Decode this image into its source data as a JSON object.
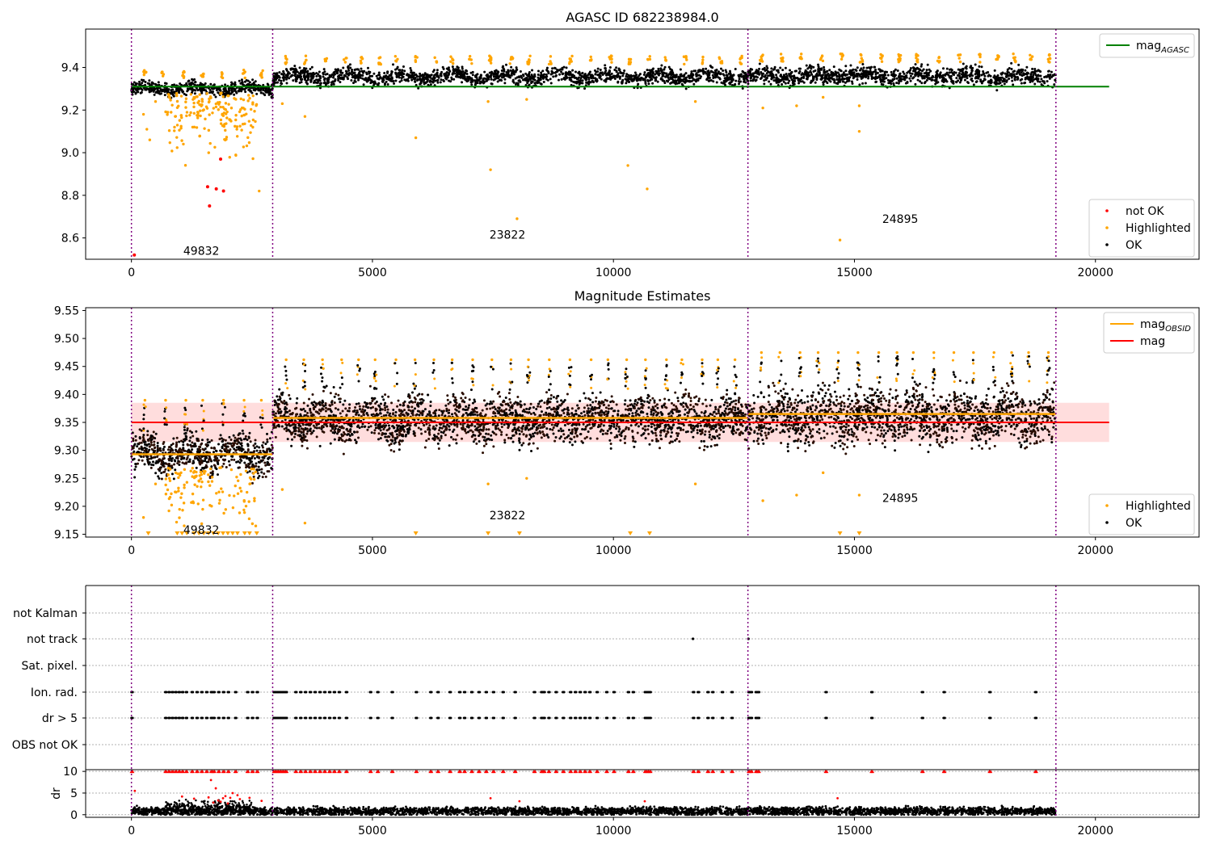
{
  "chart_data": [
    {
      "type": "scatter",
      "title": "AGASC ID 682238984.0",
      "xlim": [
        -950,
        22150
      ],
      "ylim": [
        8.5,
        9.58
      ],
      "xticks": [
        0,
        5000,
        10000,
        15000,
        20000
      ],
      "yticks": [
        8.6,
        8.8,
        9.0,
        9.2,
        9.4
      ],
      "grid": false,
      "legend_upper": {
        "position": "upper-right",
        "entries": [
          {
            "label": "mag",
            "sub": "AGASC",
            "color": "#008000"
          }
        ]
      },
      "legend_lower": {
        "position": "lower-right",
        "entries": [
          {
            "label": "not OK",
            "color": "#ff0000"
          },
          {
            "label": "Highlighted",
            "color": "#ffa500"
          },
          {
            "label": "OK",
            "color": "#000000"
          }
        ]
      },
      "obs_boundaries": [
        0,
        2930,
        12790,
        19180
      ],
      "obs_labels": [
        {
          "text": "49832",
          "x": 1450,
          "y": 8.54
        },
        {
          "text": "23822",
          "x": 7800,
          "y": 8.615
        },
        {
          "text": "24895",
          "x": 15950,
          "y": 8.69
        }
      ],
      "mag_agasc": {
        "value": 9.31,
        "x_range": [
          0,
          20150
        ]
      },
      "ok_segments": [
        {
          "x_range": [
            0,
            2930
          ],
          "center": 9.3,
          "spread": 0.015
        },
        {
          "x_range": [
            2930,
            12790
          ],
          "center": 9.357,
          "spread": 0.018
        },
        {
          "x_range": [
            12790,
            19180
          ],
          "center": 9.36,
          "spread": 0.02
        }
      ],
      "not_ok_points": [
        [
          60,
          8.52
        ],
        [
          1620,
          8.75
        ],
        [
          1580,
          8.84
        ],
        [
          1760,
          8.83
        ],
        [
          1910,
          8.82
        ],
        [
          1850,
          8.97
        ]
      ],
      "highlighted_outliers": [
        [
          250,
          9.18
        ],
        [
          320,
          9.11
        ],
        [
          380,
          9.06
        ],
        [
          500,
          9.24
        ],
        [
          3130,
          9.23
        ],
        [
          3600,
          9.17
        ],
        [
          5900,
          9.07
        ],
        [
          7400,
          9.24
        ],
        [
          7450,
          8.92
        ],
        [
          8000,
          8.69
        ],
        [
          8200,
          9.25
        ],
        [
          10300,
          8.94
        ],
        [
          10700,
          8.83
        ],
        [
          11700,
          9.24
        ],
        [
          13100,
          9.21
        ],
        [
          13800,
          9.22
        ],
        [
          14350,
          9.26
        ],
        [
          14700,
          8.59
        ],
        [
          15100,
          9.1
        ],
        [
          15100,
          9.22
        ],
        [
          2650,
          8.82
        ]
      ]
    },
    {
      "type": "scatter",
      "title": "Magnitude Estimates",
      "xlim": [
        -950,
        22150
      ],
      "ylim": [
        9.145,
        9.555
      ],
      "xticks": [
        0,
        5000,
        10000,
        15000,
        20000
      ],
      "yticks": [
        9.15,
        9.2,
        9.25,
        9.3,
        9.35,
        9.4,
        9.45,
        9.5,
        9.55
      ],
      "grid": false,
      "legend_upper": {
        "position": "upper-right",
        "entries": [
          {
            "label": "mag",
            "sub": "OBSID",
            "color": "#ffa500"
          },
          {
            "label": "mag",
            "color": "#ff0000"
          }
        ]
      },
      "legend_lower": {
        "position": "lower-right",
        "entries": [
          {
            "label": "Highlighted",
            "color": "#ffa500"
          },
          {
            "label": "OK",
            "color": "#000000"
          }
        ]
      },
      "obs_labels": [
        {
          "text": "49832",
          "x": 1450,
          "y": 9.158
        },
        {
          "text": "23822",
          "x": 7800,
          "y": 9.184
        },
        {
          "text": "24895",
          "x": 15950,
          "y": 9.215
        }
      ],
      "mag": {
        "value": 9.35,
        "band": [
          9.315,
          9.385
        ],
        "x_range": [
          0,
          20150
        ]
      },
      "mag_obsid": [
        {
          "x_range": [
            0,
            2930
          ],
          "value": 9.293
        },
        {
          "x_range": [
            2930,
            12790
          ],
          "value": 9.358
        },
        {
          "x_range": [
            12790,
            19180
          ],
          "value": 9.365
        }
      ],
      "ok_segments": [
        {
          "x_range": [
            0,
            2930
          ],
          "center": 9.293,
          "spread": 0.016
        },
        {
          "x_range": [
            2930,
            12790
          ],
          "center": 9.355,
          "spread": 0.02
        },
        {
          "x_range": [
            12790,
            19180
          ],
          "center": 9.36,
          "spread": 0.023
        }
      ],
      "clipped_markers_x": [
        350,
        950,
        1050,
        1150,
        1300,
        1400,
        1500,
        1600,
        1700,
        1800,
        1900,
        2000,
        2100,
        2200,
        2350,
        2450,
        2600,
        5900,
        7400,
        8050,
        10350,
        10750,
        14700,
        15100
      ]
    },
    {
      "type": "scatter",
      "title": "",
      "xlim": [
        -950,
        22150
      ],
      "flag_rows": [
        "not Kalman",
        "not track",
        "Sat. pixel.",
        "Ion. rad.",
        "dr > 5",
        "OBS not OK"
      ],
      "not_track_points": [
        11650,
        12800
      ],
      "ion_rad_x": [
        0,
        700,
        770,
        840,
        910,
        980,
        1050,
        1130,
        1250,
        1350,
        1450,
        1550,
        1650,
        1700,
        1800,
        1900,
        2000,
        2150,
        2400,
        2500,
        2600,
        2950,
        3000,
        3050,
        3100,
        3150,
        3200,
        3400,
        3500,
        3600,
        3700,
        3800,
        3900,
        4000,
        4100,
        4200,
        4300,
        4450,
        4950,
        5100,
        5400,
        5900,
        6200,
        6350,
        6600,
        6800,
        6900,
        7050,
        7200,
        7350,
        7500,
        7700,
        7950,
        8350,
        8500,
        8550,
        8650,
        8800,
        8950,
        9100,
        9200,
        9300,
        9400,
        9500,
        9650,
        9850,
        10000,
        10300,
        10400,
        10650,
        10700,
        10750,
        11650,
        11750,
        11950,
        12050,
        12250,
        12450,
        12800,
        12850,
        12950,
        13000,
        14400,
        15350,
        16400,
        16850,
        17800,
        18750
      ],
      "dr_gt5_x": [
        0,
        700,
        770,
        840,
        910,
        980,
        1050,
        1130,
        1250,
        1350,
        1450,
        1550,
        1650,
        1700,
        1800,
        1900,
        2000,
        2150,
        2400,
        2500,
        2600,
        2950,
        3000,
        3050,
        3100,
        3150,
        3200,
        3400,
        3500,
        3600,
        3700,
        3800,
        3900,
        4000,
        4100,
        4200,
        4300,
        4450,
        4950,
        5100,
        5400,
        5900,
        6200,
        6350,
        6600,
        6800,
        6900,
        7050,
        7200,
        7350,
        7500,
        7700,
        7950,
        8350,
        8500,
        8550,
        8650,
        8800,
        8950,
        9100,
        9200,
        9300,
        9400,
        9500,
        9650,
        9850,
        10000,
        10300,
        10400,
        10650,
        10700,
        10750,
        11650,
        11750,
        11950,
        12050,
        12250,
        12450,
        12800,
        12850,
        12950,
        13000,
        14400,
        15350,
        16400,
        16850,
        17800,
        18750
      ]
    },
    {
      "type": "scatter",
      "title": "",
      "ylabel": "dr",
      "xlim": [
        -950,
        22150
      ],
      "ylim": [
        -0.6,
        10.4
      ],
      "xticks": [
        0,
        5000,
        10000,
        15000,
        20000
      ],
      "yticks": [
        0,
        5,
        10
      ],
      "clipped_at": 10,
      "dr_baseline": {
        "x_range": [
          0,
          19180
        ],
        "mean": 0.8,
        "spread": 0.45
      },
      "dr_red_points": [
        [
          70,
          5.5
        ],
        [
          1050,
          4.2
        ],
        [
          1300,
          3.7
        ],
        [
          1600,
          4.0
        ],
        [
          1650,
          8.0
        ],
        [
          1700,
          2.8
        ],
        [
          1750,
          6.1
        ],
        [
          1800,
          3.3
        ],
        [
          1850,
          3.0
        ],
        [
          1900,
          3.8
        ],
        [
          1950,
          4.3
        ],
        [
          2000,
          2.6
        ],
        [
          2050,
          3.9
        ],
        [
          2100,
          5.0
        ],
        [
          2200,
          4.5
        ],
        [
          2250,
          3.6
        ],
        [
          2450,
          3.9
        ],
        [
          2700,
          3.2
        ],
        [
          7450,
          3.8
        ],
        [
          8050,
          3.1
        ],
        [
          10650,
          3.1
        ],
        [
          14650,
          3.8
        ]
      ]
    }
  ]
}
